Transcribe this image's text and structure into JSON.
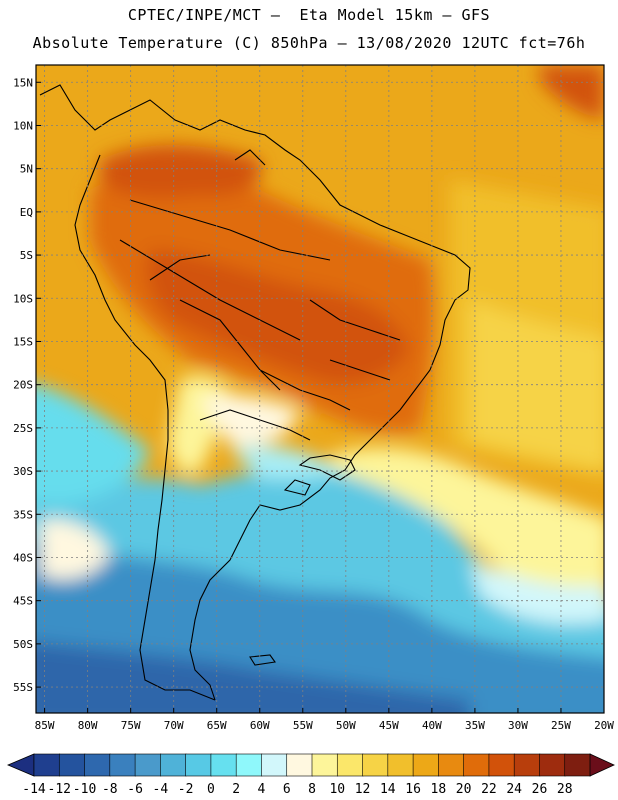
{
  "header": {
    "line1": "CPTEC/INPE/MCT –  Eta Model 15km – GFS",
    "line2": "Absolute Temperature (C) 850hPa – 13/08/2020 12UTC fct=76h"
  },
  "map": {
    "lat_labels": [
      "15N",
      "10N",
      "5N",
      "EQ",
      "5S",
      "10S",
      "15S",
      "20S",
      "25S",
      "30S",
      "35S",
      "40S",
      "45S",
      "50S",
      "55S"
    ],
    "lon_labels": [
      "85W",
      "80W",
      "75W",
      "70W",
      "65W",
      "60W",
      "55W",
      "50W",
      "45W",
      "40W",
      "35W",
      "30W",
      "25W",
      "20W"
    ],
    "grid": "dotted"
  },
  "colorbar": {
    "labels": [
      "-14",
      "-12",
      "-10",
      "-8",
      "-6",
      "-4",
      "-2",
      "0",
      "2",
      "4",
      "6",
      "8",
      "10",
      "12",
      "14",
      "16",
      "18",
      "20",
      "22",
      "24",
      "26",
      "28"
    ],
    "colors": [
      "#1f3f8f",
      "#24539e",
      "#2e68ae",
      "#3a80be",
      "#4a9acb",
      "#4fb2d8",
      "#57c9e5",
      "#66e0ef",
      "#8ff8fb",
      "#d2f7fb",
      "#fff8e0",
      "#fdf59a",
      "#fbe76a",
      "#f6d346",
      "#f1bf2c",
      "#eda817",
      "#e88a10",
      "#e06c0a",
      "#d2520a",
      "#b83e0c",
      "#9e2c0e",
      "#7e1e10"
    ],
    "under_color": "#1c2f80",
    "over_color": "#6a0e1a"
  }
}
